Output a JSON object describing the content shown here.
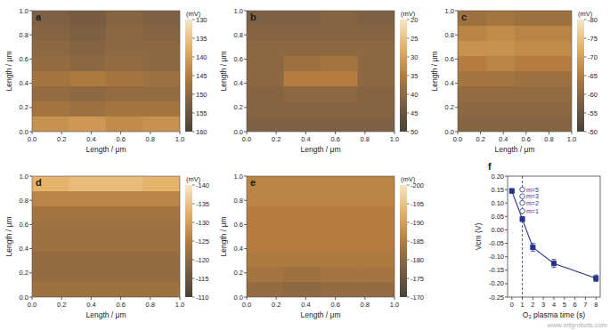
{
  "chart_data": [
    {
      "type": "heatmap",
      "title": "a",
      "x_label": "Length / μm",
      "y_label": "Length / μm",
      "xlim": [
        0,
        1
      ],
      "ylim": [
        0,
        1
      ],
      "xticks": [
        {
          "value": 0,
          "label": "0.0"
        },
        0.2,
        0.4,
        0.6,
        0.8,
        {
          "value": 1,
          "label": "1.0"
        }
      ],
      "yticks": [
        {
          "value": 0,
          "label": "0.0"
        },
        0.2,
        0.4,
        0.6,
        0.8,
        {
          "value": 1,
          "label": "1.0"
        }
      ],
      "colors": [
        "#f7e6c4",
        "#e4b066",
        "#b47d3f",
        "#7a5e42",
        "#4a4238"
      ],
      "color_label": "(mV)",
      "color_range": [
        130,
        160
      ],
      "color_ticks": [
        130,
        135,
        140,
        145,
        150,
        155,
        160
      ],
      "cells": [
        [
          152,
          153,
          151,
          152
        ],
        [
          151,
          152,
          150,
          151
        ],
        [
          150,
          151,
          150,
          150
        ],
        [
          149,
          150,
          149,
          150
        ],
        [
          147,
          146,
          147,
          148
        ],
        [
          149,
          150,
          149,
          149
        ],
        [
          147,
          148,
          147,
          147
        ],
        [
          142,
          141,
          143,
          142
        ]
      ]
    },
    {
      "type": "heatmap",
      "title": "b",
      "x_label": "Length / μm",
      "y_label": "Length / μm",
      "xlim": [
        0,
        1
      ],
      "ylim": [
        0,
        1
      ],
      "xticks": [
        {
          "value": 0,
          "label": "0.0"
        },
        0.2,
        0.4,
        0.6,
        0.8,
        {
          "value": 1,
          "label": "1.0"
        }
      ],
      "yticks": [
        {
          "value": 0,
          "label": "0.0"
        },
        0.2,
        0.4,
        0.6,
        0.8,
        {
          "value": 1,
          "label": "1.0"
        }
      ],
      "colors": [
        "#f7e6c4",
        "#e4b066",
        "#b47d3f",
        "#7a5e42",
        "#4a4238"
      ],
      "color_label": "(mV)",
      "color_range": [
        20,
        50
      ],
      "color_ticks": [
        20,
        25,
        30,
        35,
        40,
        45,
        50
      ],
      "cells": [
        [
          42,
          42,
          41,
          42
        ],
        [
          41,
          41,
          41,
          41
        ],
        [
          40,
          40,
          40,
          40
        ],
        [
          40,
          38,
          37,
          40
        ],
        [
          40,
          35,
          35,
          40
        ],
        [
          41,
          40,
          40,
          41
        ],
        [
          41,
          41,
          41,
          41
        ],
        [
          42,
          42,
          42,
          42
        ]
      ]
    },
    {
      "type": "heatmap",
      "title": "c",
      "x_label": "Length / μm",
      "y_label": "Length / μm",
      "xlim": [
        0,
        1
      ],
      "ylim": [
        0,
        1
      ],
      "xticks": [
        {
          "value": 0,
          "label": "0.0"
        },
        0.2,
        0.4,
        0.6,
        0.8,
        {
          "value": 1,
          "label": "1.0"
        }
      ],
      "yticks": [
        {
          "value": 0,
          "label": "0.0"
        },
        0.2,
        0.4,
        0.6,
        0.8,
        {
          "value": 1,
          "label": "1.0"
        }
      ],
      "colors": [
        "#f7e6c4",
        "#e4b066",
        "#b47d3f",
        "#7a5e42",
        "#4a4238"
      ],
      "color_label": "(mV)",
      "color_range": [
        -80,
        -50
      ],
      "color_ticks": [
        -80,
        -75,
        -70,
        -65,
        -60,
        -55,
        -50
      ],
      "cells": [
        [
          -62,
          -63,
          -62,
          -62
        ],
        [
          -66,
          -67,
          -66,
          -66
        ],
        [
          -68,
          -68,
          -67,
          -67
        ],
        [
          -65,
          -66,
          -65,
          -65
        ],
        [
          -63,
          -63,
          -62,
          -62
        ],
        [
          -61,
          -61,
          -61,
          -61
        ],
        [
          -60,
          -60,
          -60,
          -60
        ],
        [
          -59,
          -59,
          -59,
          -59
        ]
      ]
    },
    {
      "type": "heatmap",
      "title": "d",
      "x_label": "Length / μm",
      "y_label": "Length / μm",
      "xlim": [
        0,
        1
      ],
      "ylim": [
        0,
        1
      ],
      "xticks": [
        {
          "value": 0,
          "label": "0.0"
        },
        0.2,
        0.4,
        0.6,
        0.8,
        {
          "value": 1,
          "label": "1.0"
        }
      ],
      "yticks": [
        {
          "value": 0,
          "label": "0.0"
        },
        0.2,
        0.4,
        0.6,
        0.8,
        {
          "value": 1,
          "label": "1.0"
        }
      ],
      "colors": [
        "#f7e6c4",
        "#e4b066",
        "#b47d3f",
        "#7a5e42",
        "#4a4238"
      ],
      "color_label": "(mV)",
      "color_range": [
        -140,
        -110
      ],
      "color_ticks": [
        -140,
        -135,
        -130,
        -125,
        -120,
        -115,
        -110
      ],
      "cells": [
        [
          -133,
          -134,
          -134,
          -133
        ],
        [
          -126,
          -126,
          -126,
          -126
        ],
        [
          -123,
          -123,
          -123,
          -123
        ],
        [
          -122,
          -122,
          -122,
          -122
        ],
        [
          -122,
          -122,
          -122,
          -122
        ],
        [
          -121,
          -121,
          -121,
          -121
        ],
        [
          -121,
          -121,
          -121,
          -121
        ],
        [
          -122,
          -122,
          -122,
          -122
        ]
      ]
    },
    {
      "type": "heatmap",
      "title": "e",
      "x_label": "Length / μm",
      "y_label": "Length / μm",
      "xlim": [
        0,
        1
      ],
      "ylim": [
        0,
        1
      ],
      "xticks": [
        {
          "value": 0,
          "label": "0.0"
        },
        0.2,
        0.4,
        0.6,
        0.8,
        {
          "value": 1,
          "label": "1.0"
        }
      ],
      "yticks": [
        {
          "value": 0,
          "label": "0.0"
        },
        0.2,
        0.4,
        0.6,
        0.8,
        {
          "value": 1,
          "label": "1.0"
        }
      ],
      "colors": [
        "#f7e6c4",
        "#e4b066",
        "#b47d3f",
        "#7a5e42",
        "#4a4238"
      ],
      "color_label": "(mV)",
      "color_range": [
        -200,
        -170
      ],
      "color_ticks": [
        -200,
        -195,
        -190,
        -185,
        -180,
        -175,
        -170
      ],
      "cells": [
        [
          -186,
          -186,
          -186,
          -186
        ],
        [
          -186,
          -186,
          -186,
          -186
        ],
        [
          -185,
          -185,
          -185,
          -185
        ],
        [
          -185,
          -185,
          -185,
          -185
        ],
        [
          -185,
          -185,
          -185,
          -185
        ],
        [
          -184,
          -184,
          -184,
          -184
        ],
        [
          -183,
          -182,
          -183,
          -183
        ],
        [
          -181,
          -180,
          -181,
          -181
        ]
      ]
    },
    {
      "type": "line",
      "title": "f",
      "x_label": "O₂ plasma time (s)",
      "y_label": "Vcm (V)",
      "xlim": [
        -0.4,
        8.4
      ],
      "ylim": [
        -0.25,
        0.2
      ],
      "xticks": [
        0,
        1,
        2,
        3,
        4,
        5,
        6,
        7,
        8
      ],
      "yticks": [
        {
          "value": 0.2,
          "label": "0.20"
        },
        0.15,
        {
          "value": 0.1,
          "label": "0.10"
        },
        0.05,
        {
          "value": 0,
          "label": "0.00"
        },
        -0.05,
        {
          "value": -0.1,
          "label": "-0.10"
        },
        -0.15,
        {
          "value": -0.2,
          "label": "-0.20"
        },
        -0.25
      ],
      "x": [
        0,
        1,
        2,
        4,
        8
      ],
      "reference_line": {
        "x": 1,
        "line_style": "dashed"
      },
      "series": [
        {
          "type": "line",
          "color": "#26338a",
          "marker": "square",
          "values": [
            0.145,
            0.04,
            -0.065,
            -0.125,
            -0.18
          ],
          "errors": [
            0.008,
            0.008,
            0.015,
            0.015,
            0.012
          ]
        },
        {
          "type": "scatter",
          "color": "#26338a",
          "marker": "circle-open",
          "x": [
            1,
            1,
            1,
            1
          ],
          "values": [
            0.07,
            0.1,
            0.125,
            0.15
          ],
          "labels": [
            "m=1",
            "m=2",
            "m=3",
            "m=5"
          ]
        }
      ]
    }
  ],
  "watermark": "www.mfgrobots.com"
}
